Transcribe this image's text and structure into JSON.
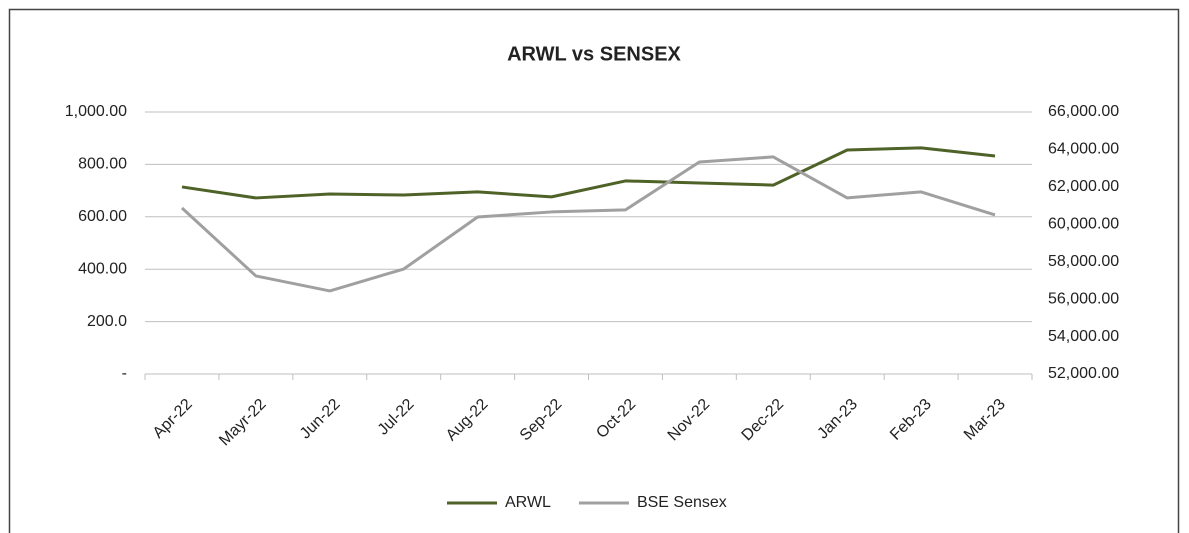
{
  "chart_data": {
    "type": "line",
    "title": "ARWL vs SENSEX",
    "categories": [
      "Apr-22",
      "Mayr-22",
      "Jun-22",
      "Jul-22",
      "Aug-22",
      "Sep-22",
      "Oct-22",
      "Nov-22",
      "Dec-22",
      "Jan-23",
      "Feb-23",
      "Mar-23"
    ],
    "series": [
      {
        "name": "ARWL",
        "color": "#4f6228",
        "values": [
          714,
          672,
          687,
          683,
          695,
          676,
          737,
          729,
          721,
          855,
          863,
          832
        ]
      },
      {
        "name": "BSE Sensex",
        "color": "#a0a0a0",
        "axis": "y2",
        "values": [
          60870,
          57240,
          56440,
          57610,
          60390,
          60660,
          60770,
          63330,
          63600,
          61410,
          61730,
          60500
        ]
      }
    ],
    "ylim": [
      0,
      1000
    ],
    "yticks": [
      {
        "value": 0,
        "label": "-"
      },
      {
        "value": 200,
        "label": "200.0"
      },
      {
        "value": 400,
        "label": "400.00"
      },
      {
        "value": 600,
        "label": "600.00"
      },
      {
        "value": 800,
        "label": "800.00"
      },
      {
        "value": 1000,
        "label": "1,000.00"
      }
    ],
    "y2lim": [
      52000,
      66000
    ],
    "y2ticks": [
      {
        "value": 52000,
        "label": "52,000.00"
      },
      {
        "value": 54000,
        "label": "54,000.00"
      },
      {
        "value": 56000,
        "label": "56,000.00"
      },
      {
        "value": 58000,
        "label": "58,000.00"
      },
      {
        "value": 60000,
        "label": "60,000.00"
      },
      {
        "value": 62000,
        "label": "62,000.00"
      },
      {
        "value": 64000,
        "label": "64,000.00"
      },
      {
        "value": 66000,
        "label": "66,000.00"
      }
    ],
    "grid": true,
    "legend": "bottom"
  }
}
